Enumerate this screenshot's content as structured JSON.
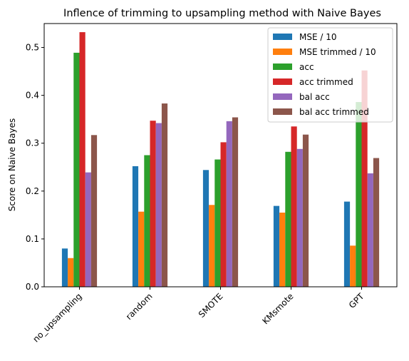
{
  "chart_data": {
    "type": "bar",
    "title": "Inflence of trimming to upsampling method with Naive Bayes",
    "xlabel": "",
    "ylabel": "Score on Naive Bayes",
    "ylim": [
      0,
      0.55
    ],
    "yticks": [
      "0.0",
      "0.1",
      "0.2",
      "0.3",
      "0.4",
      "0.5"
    ],
    "categories": [
      "no_upsampling",
      "random",
      "SMOTE",
      "KMsmote",
      "GPT"
    ],
    "legend_position": "top-right",
    "grid": false,
    "series": [
      {
        "name": "MSE / 10",
        "color": "#1f77b4",
        "values": [
          0.08,
          0.252,
          0.244,
          0.169,
          0.178
        ]
      },
      {
        "name": "MSE trimmed / 10",
        "color": "#ff7f0e",
        "values": [
          0.06,
          0.157,
          0.171,
          0.155,
          0.086
        ]
      },
      {
        "name": "acc",
        "color": "#2ca02c",
        "values": [
          0.489,
          0.275,
          0.266,
          0.282,
          0.386
        ]
      },
      {
        "name": "acc trimmed",
        "color": "#d62728",
        "values": [
          0.532,
          0.347,
          0.302,
          0.335,
          0.452
        ]
      },
      {
        "name": "bal acc",
        "color": "#9467bd",
        "values": [
          0.239,
          0.342,
          0.346,
          0.288,
          0.237
        ]
      },
      {
        "name": "bal acc trimmed",
        "color": "#8c564b",
        "values": [
          0.317,
          0.383,
          0.354,
          0.318,
          0.269
        ]
      }
    ]
  }
}
